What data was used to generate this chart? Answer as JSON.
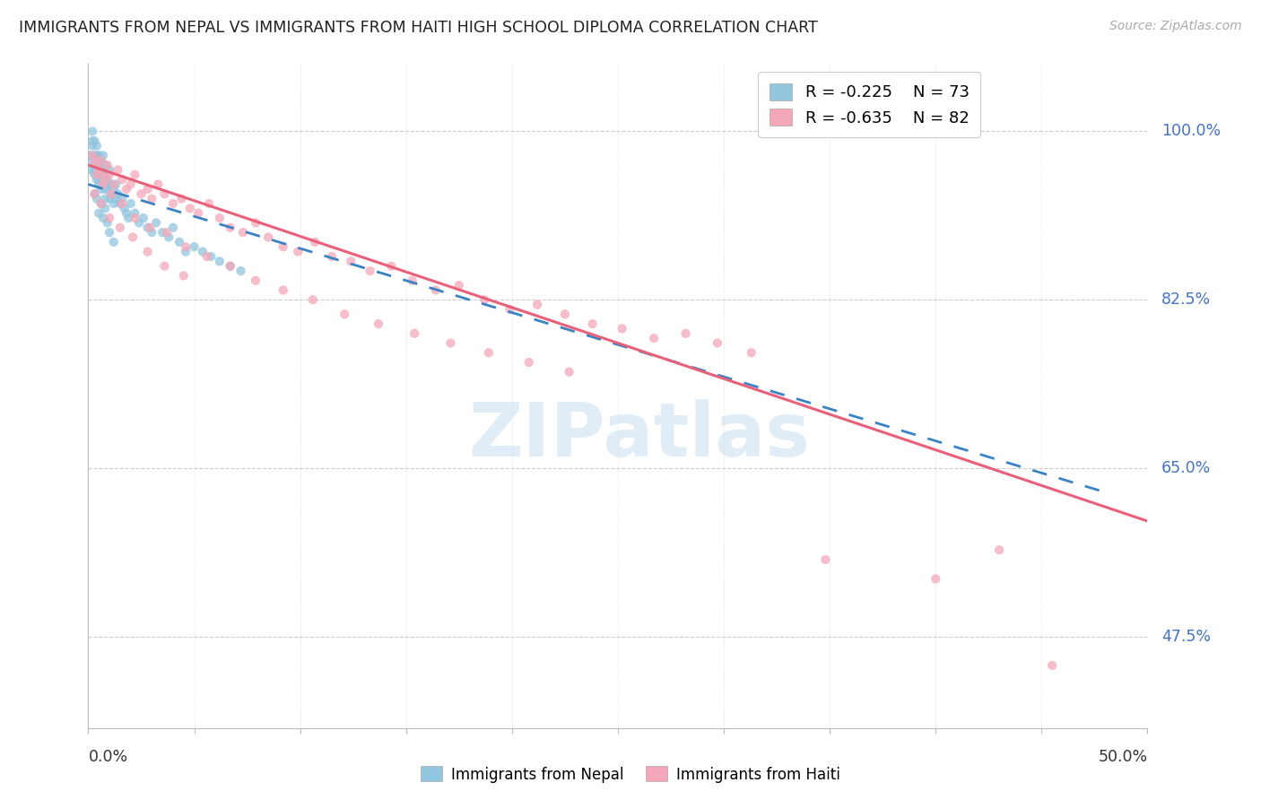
{
  "title": "IMMIGRANTS FROM NEPAL VS IMMIGRANTS FROM HAITI HIGH SCHOOL DIPLOMA CORRELATION CHART",
  "source": "Source: ZipAtlas.com",
  "ylabel": "High School Diploma",
  "ytick_labels": [
    "100.0%",
    "82.5%",
    "65.0%",
    "47.5%"
  ],
  "ytick_vals": [
    1.0,
    0.825,
    0.65,
    0.475
  ],
  "xlim": [
    0.0,
    0.5
  ],
  "ylim": [
    0.38,
    1.07
  ],
  "xleft_label": "0.0%",
  "xright_label": "50.0%",
  "nepal_R": "-0.225",
  "nepal_N": "73",
  "haiti_R": "-0.635",
  "haiti_N": "82",
  "nepal_color": "#92c5de",
  "haiti_color": "#f4a7b9",
  "nepal_line_color": "#3b82c4",
  "haiti_line_color": "#e8607a",
  "watermark_color": "#c8dff0",
  "nepal_line_x0": 0.0,
  "nepal_line_x1": 0.075,
  "nepal_line_y0": 0.945,
  "nepal_line_y1": 0.895,
  "haiti_line_x0": 0.0,
  "haiti_line_x1": 0.5,
  "haiti_line_y0": 0.965,
  "haiti_line_y1": 0.595,
  "nepal_pts_x": [
    0.001,
    0.001,
    0.002,
    0.002,
    0.002,
    0.002,
    0.003,
    0.003,
    0.003,
    0.003,
    0.003,
    0.004,
    0.004,
    0.004,
    0.004,
    0.005,
    0.005,
    0.005,
    0.005,
    0.006,
    0.006,
    0.006,
    0.007,
    0.007,
    0.007,
    0.008,
    0.008,
    0.008,
    0.008,
    0.009,
    0.009,
    0.01,
    0.01,
    0.01,
    0.011,
    0.011,
    0.012,
    0.012,
    0.013,
    0.013,
    0.014,
    0.015,
    0.016,
    0.017,
    0.018,
    0.019,
    0.02,
    0.022,
    0.024,
    0.026,
    0.028,
    0.03,
    0.032,
    0.035,
    0.038,
    0.04,
    0.043,
    0.046,
    0.05,
    0.054,
    0.058,
    0.062,
    0.067,
    0.072,
    0.003,
    0.004,
    0.005,
    0.006,
    0.007,
    0.008,
    0.009,
    0.01,
    0.012
  ],
  "nepal_pts_y": [
    0.975,
    0.96,
    0.99,
    1.0,
    0.985,
    0.97,
    0.975,
    0.96,
    0.99,
    0.965,
    0.955,
    0.975,
    0.96,
    0.95,
    0.985,
    0.965,
    0.95,
    0.975,
    0.945,
    0.955,
    0.97,
    0.94,
    0.96,
    0.945,
    0.975,
    0.955,
    0.94,
    0.965,
    0.93,
    0.95,
    0.94,
    0.945,
    0.93,
    0.96,
    0.935,
    0.945,
    0.94,
    0.925,
    0.93,
    0.945,
    0.935,
    0.925,
    0.93,
    0.92,
    0.915,
    0.91,
    0.925,
    0.915,
    0.905,
    0.91,
    0.9,
    0.895,
    0.905,
    0.895,
    0.89,
    0.9,
    0.885,
    0.875,
    0.88,
    0.875,
    0.87,
    0.865,
    0.86,
    0.855,
    0.935,
    0.93,
    0.915,
    0.925,
    0.91,
    0.92,
    0.905,
    0.895,
    0.885
  ],
  "haiti_pts_x": [
    0.002,
    0.003,
    0.004,
    0.005,
    0.006,
    0.007,
    0.008,
    0.009,
    0.01,
    0.012,
    0.014,
    0.016,
    0.018,
    0.02,
    0.022,
    0.025,
    0.028,
    0.03,
    0.033,
    0.036,
    0.04,
    0.044,
    0.048,
    0.052,
    0.057,
    0.062,
    0.067,
    0.073,
    0.079,
    0.085,
    0.092,
    0.099,
    0.107,
    0.115,
    0.124,
    0.133,
    0.143,
    0.153,
    0.164,
    0.175,
    0.187,
    0.199,
    0.212,
    0.225,
    0.238,
    0.252,
    0.267,
    0.282,
    0.297,
    0.313,
    0.004,
    0.007,
    0.011,
    0.016,
    0.022,
    0.029,
    0.037,
    0.046,
    0.056,
    0.067,
    0.079,
    0.092,
    0.106,
    0.121,
    0.137,
    0.154,
    0.171,
    0.189,
    0.208,
    0.227,
    0.003,
    0.006,
    0.01,
    0.015,
    0.021,
    0.028,
    0.036,
    0.045,
    0.348,
    0.4,
    0.43,
    0.455
  ],
  "haiti_pts_y": [
    0.975,
    0.97,
    0.965,
    0.96,
    0.97,
    0.955,
    0.95,
    0.965,
    0.955,
    0.945,
    0.96,
    0.95,
    0.94,
    0.945,
    0.955,
    0.935,
    0.94,
    0.93,
    0.945,
    0.935,
    0.925,
    0.93,
    0.92,
    0.915,
    0.925,
    0.91,
    0.9,
    0.895,
    0.905,
    0.89,
    0.88,
    0.875,
    0.885,
    0.87,
    0.865,
    0.855,
    0.86,
    0.845,
    0.835,
    0.84,
    0.825,
    0.815,
    0.82,
    0.81,
    0.8,
    0.795,
    0.785,
    0.79,
    0.78,
    0.77,
    0.955,
    0.945,
    0.935,
    0.925,
    0.91,
    0.9,
    0.895,
    0.88,
    0.87,
    0.86,
    0.845,
    0.835,
    0.825,
    0.81,
    0.8,
    0.79,
    0.78,
    0.77,
    0.76,
    0.75,
    0.935,
    0.925,
    0.91,
    0.9,
    0.89,
    0.875,
    0.86,
    0.85,
    0.555,
    0.535,
    0.565,
    0.445
  ]
}
